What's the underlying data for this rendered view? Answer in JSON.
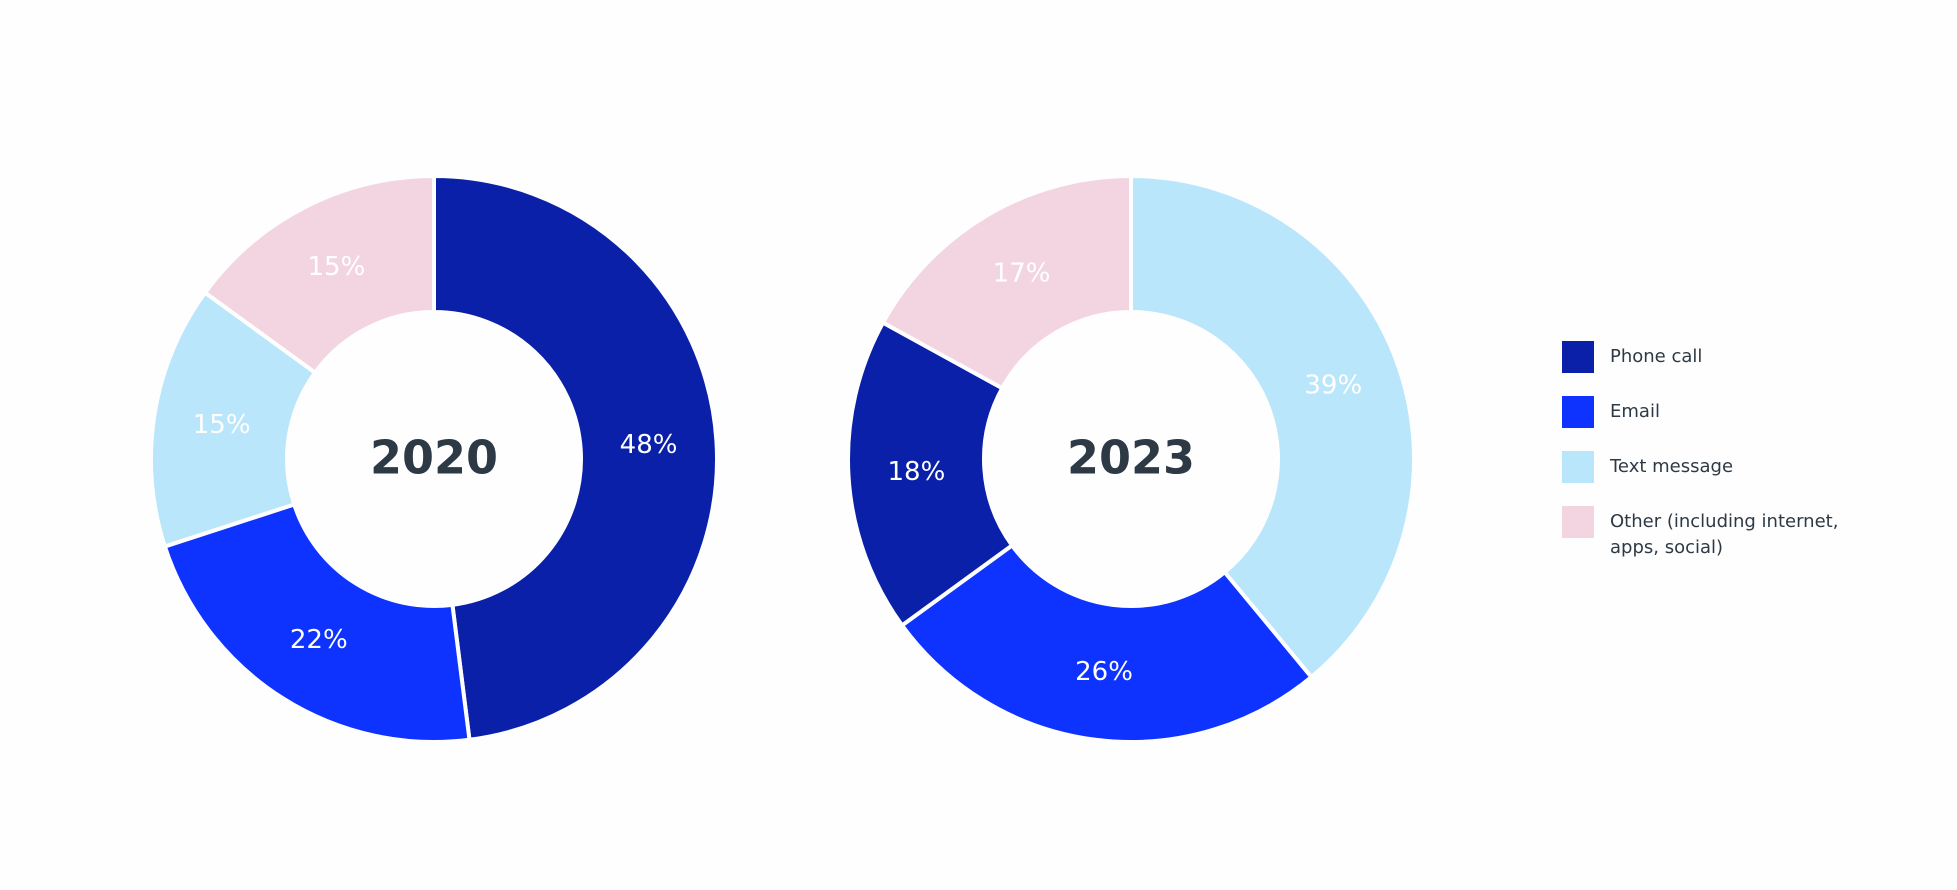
{
  "chart_data": [
    {
      "type": "donut",
      "title": "2020",
      "categories": [
        "Phone call",
        "Email",
        "Text message",
        "Other (including internet, apps, social)"
      ],
      "values": [
        48,
        22,
        15,
        15
      ],
      "value_labels": [
        "48%",
        "22%",
        "15%",
        "15%"
      ],
      "colors": [
        "#0a20a8",
        "#0f33ff",
        "#b9e6fb",
        "#f3d5e1"
      ]
    },
    {
      "type": "donut",
      "title": "2023",
      "categories": [
        "Text message",
        "Email",
        "Phone call",
        "Other (including internet, apps, social)"
      ],
      "values": [
        39,
        26,
        18,
        17
      ],
      "value_labels": [
        "39%",
        "26%",
        "18%",
        "17%"
      ],
      "colors": [
        "#b9e6fb",
        "#0f33ff",
        "#0a20a8",
        "#f3d5e1"
      ]
    }
  ]
}
